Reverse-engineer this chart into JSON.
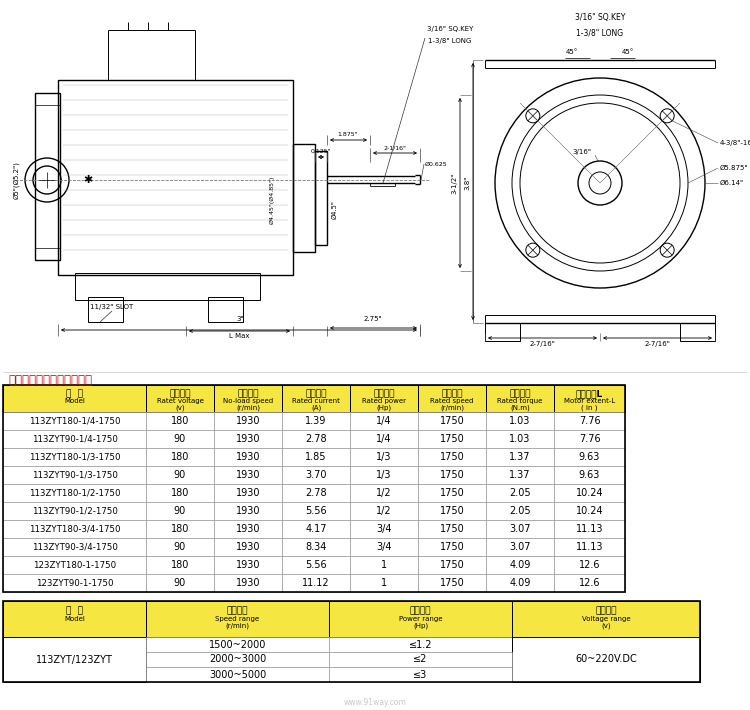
{
  "title_drawing": "永磁直流电机产品参数表：",
  "bg_color": "#ffffff",
  "table1_header_bg": "#f5e642",
  "table1_header_zh": [
    "型  号",
    "额定电压",
    "空载转速",
    "额定电流",
    "额定功率",
    "额定转速",
    "额定转矩",
    "电机长度L"
  ],
  "table1_header_en": [
    "Model",
    "Ratet voltage\n(v)",
    "No-load speed\n(r/min)",
    "Rated current\n(A)",
    "Rated power\n(Hp)",
    "Rated speed\n(r/min)",
    "Rated torque\n(N.m)",
    "Motor extent-L\n( in )"
  ],
  "table1_data": [
    [
      "113ZYT180-1/4-1750",
      "180",
      "1930",
      "1.39",
      "1/4",
      "1750",
      "1.03",
      "7.76"
    ],
    [
      "113ZYT90-1/4-1750",
      "90",
      "1930",
      "2.78",
      "1/4",
      "1750",
      "1.03",
      "7.76"
    ],
    [
      "113ZYT180-1/3-1750",
      "180",
      "1930",
      "1.85",
      "1/3",
      "1750",
      "1.37",
      "9.63"
    ],
    [
      "113ZYT90-1/3-1750",
      "90",
      "1930",
      "3.70",
      "1/3",
      "1750",
      "1.37",
      "9.63"
    ],
    [
      "113ZYT180-1/2-1750",
      "180",
      "1930",
      "2.78",
      "1/2",
      "1750",
      "2.05",
      "10.24"
    ],
    [
      "113ZYT90-1/2-1750",
      "90",
      "1930",
      "5.56",
      "1/2",
      "1750",
      "2.05",
      "10.24"
    ],
    [
      "113ZYT180-3/4-1750",
      "180",
      "1930",
      "4.17",
      "3/4",
      "1750",
      "3.07",
      "11.13"
    ],
    [
      "113ZYT90-3/4-1750",
      "90",
      "1930",
      "8.34",
      "3/4",
      "1750",
      "3.07",
      "11.13"
    ],
    [
      "123ZYT180-1-1750",
      "180",
      "1930",
      "5.56",
      "1",
      "1750",
      "4.09",
      "12.6"
    ],
    [
      "123ZYT90-1-1750",
      "90",
      "1930",
      "11.12",
      "1",
      "1750",
      "4.09",
      "12.6"
    ]
  ],
  "table2_header_zh": [
    "型  号",
    "转速范围",
    "功率范围",
    "电压范围"
  ],
  "table2_header_en": [
    "Model",
    "Speed range\n(r/min)",
    "Power range\n(Hp)",
    "Voltage range\n(v)"
  ],
  "table2_model": "113ZYT/123ZYT",
  "table2_speeds": [
    "1500~2000",
    "2000~3000",
    "3000~5000"
  ],
  "table2_powers": [
    "≤1.2",
    "≤2",
    "≤3"
  ],
  "table2_voltage": "60~220V.DC"
}
